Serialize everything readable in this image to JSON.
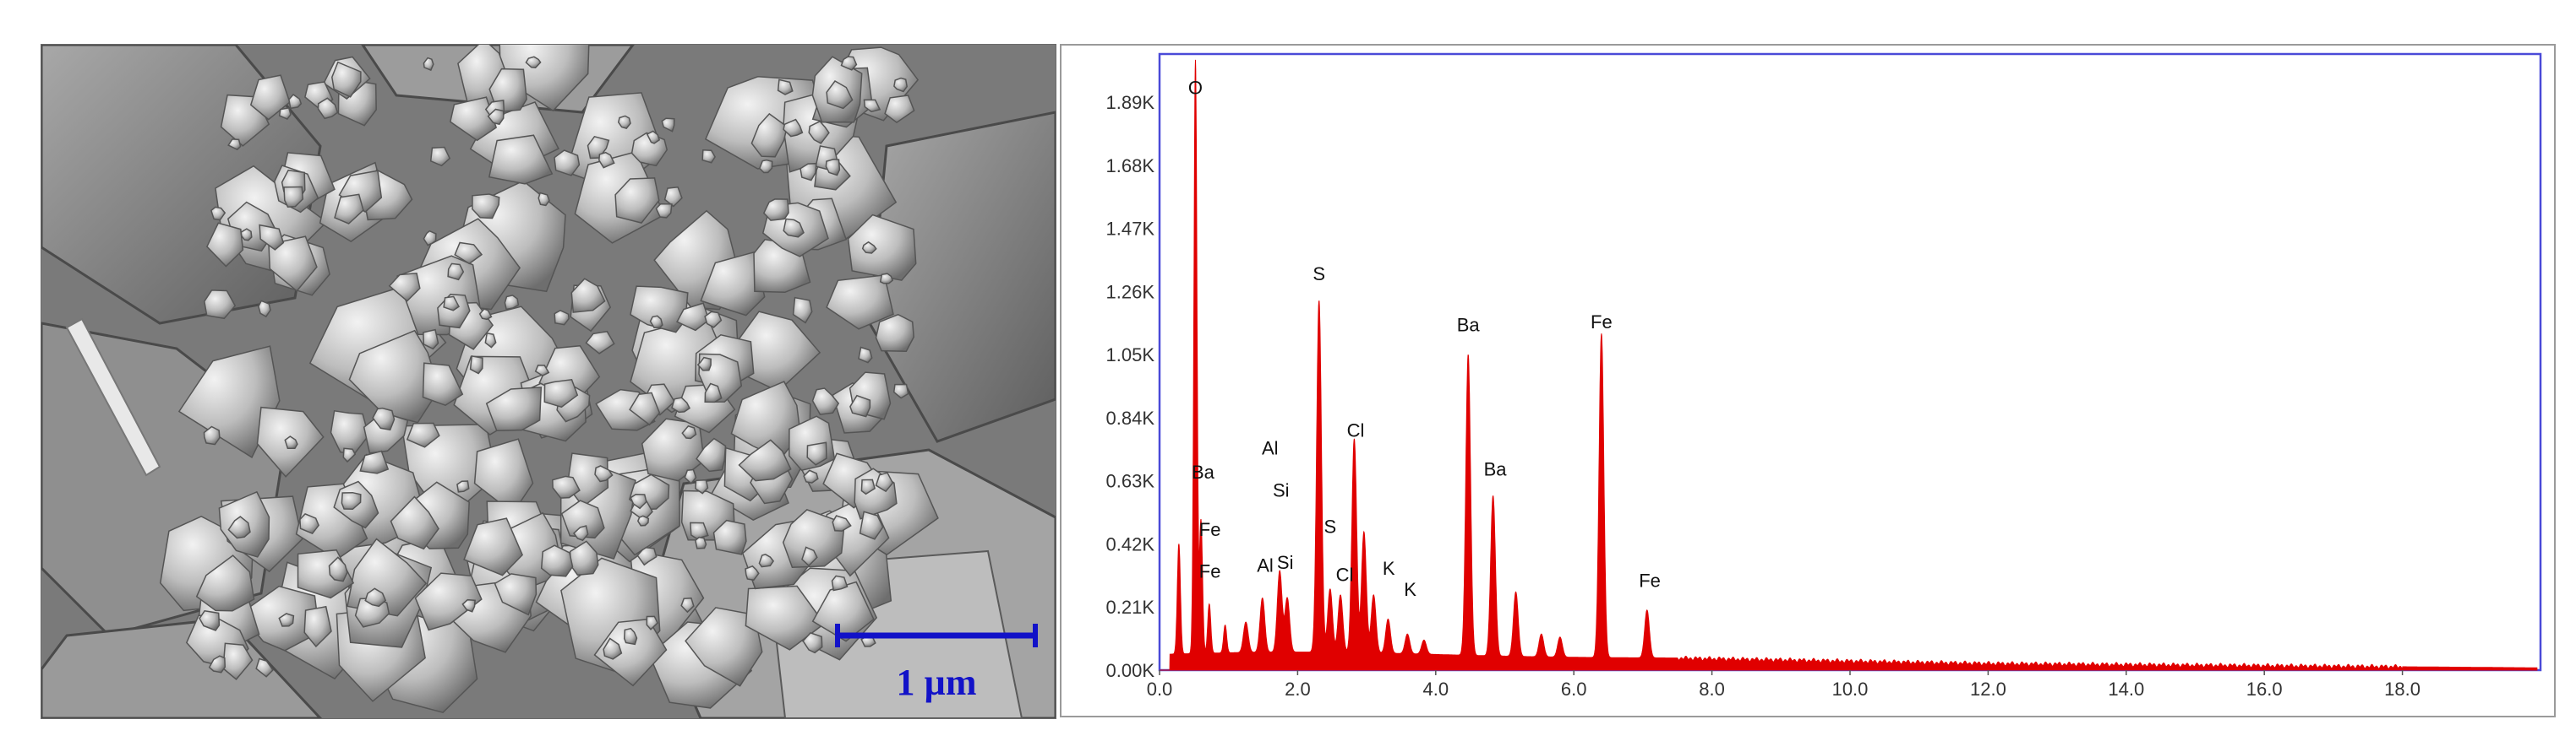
{
  "sem_image": {
    "scale_bar_label": "1 µm",
    "scale_bar_color": "#1212c8"
  },
  "chart_data": {
    "type": "area",
    "x_ticks": [
      "0.0",
      "2.0",
      "4.0",
      "6.0",
      "8.0",
      "10.0",
      "12.0",
      "14.0",
      "16.0",
      "18.0"
    ],
    "y_ticks": [
      "0.00K",
      "0.21K",
      "0.42K",
      "0.63K",
      "0.84K",
      "1.05K",
      "1.26K",
      "1.47K",
      "1.68K",
      "1.89K"
    ],
    "xlim": [
      0,
      20
    ],
    "ylim": [
      0,
      2.05
    ],
    "series_color": "#e00000",
    "frame_color": "#4a4ad8",
    "background": 0.04,
    "peaks": [
      {
        "x": 0.28,
        "y": 0.42
      },
      {
        "x": 0.52,
        "y": 2.03
      },
      {
        "x": 0.6,
        "y": 0.5
      },
      {
        "x": 0.72,
        "y": 0.22
      },
      {
        "x": 0.95,
        "y": 0.15
      },
      {
        "x": 1.25,
        "y": 0.16
      },
      {
        "x": 1.49,
        "y": 0.24
      },
      {
        "x": 1.74,
        "y": 0.33
      },
      {
        "x": 1.85,
        "y": 0.24
      },
      {
        "x": 2.31,
        "y": 1.23
      },
      {
        "x": 2.47,
        "y": 0.27
      },
      {
        "x": 2.62,
        "y": 0.25
      },
      {
        "x": 2.82,
        "y": 0.77
      },
      {
        "x": 2.96,
        "y": 0.46
      },
      {
        "x": 3.1,
        "y": 0.25
      },
      {
        "x": 3.31,
        "y": 0.17
      },
      {
        "x": 3.59,
        "y": 0.12
      },
      {
        "x": 3.83,
        "y": 0.1
      },
      {
        "x": 4.47,
        "y": 1.05
      },
      {
        "x": 4.83,
        "y": 0.58
      },
      {
        "x": 5.16,
        "y": 0.26
      },
      {
        "x": 5.53,
        "y": 0.12
      },
      {
        "x": 5.8,
        "y": 0.11
      },
      {
        "x": 6.4,
        "y": 1.12
      },
      {
        "x": 7.06,
        "y": 0.2
      }
    ],
    "labels": [
      {
        "text": "O",
        "x": 0.52,
        "y": 1.9
      },
      {
        "text": "Ba",
        "x": 0.63,
        "y": 0.62
      },
      {
        "text": "Fe",
        "x": 0.73,
        "y": 0.43
      },
      {
        "text": "Fe",
        "x": 0.73,
        "y": 0.29
      },
      {
        "text": "Al",
        "x": 1.6,
        "y": 0.7
      },
      {
        "text": "Si",
        "x": 1.76,
        "y": 0.56
      },
      {
        "text": "Al",
        "x": 1.53,
        "y": 0.31
      },
      {
        "text": "Si",
        "x": 1.82,
        "y": 0.32
      },
      {
        "text": "S",
        "x": 2.31,
        "y": 1.28
      },
      {
        "text": "S",
        "x": 2.47,
        "y": 0.44
      },
      {
        "text": "Cl",
        "x": 2.84,
        "y": 0.76
      },
      {
        "text": "Cl",
        "x": 2.68,
        "y": 0.28
      },
      {
        "text": "K",
        "x": 3.32,
        "y": 0.3
      },
      {
        "text": "K",
        "x": 3.63,
        "y": 0.23
      },
      {
        "text": "Ba",
        "x": 4.47,
        "y": 1.11
      },
      {
        "text": "Ba",
        "x": 4.86,
        "y": 0.63
      },
      {
        "text": "Fe",
        "x": 6.4,
        "y": 1.12
      },
      {
        "text": "Fe",
        "x": 7.1,
        "y": 0.26
      }
    ]
  }
}
